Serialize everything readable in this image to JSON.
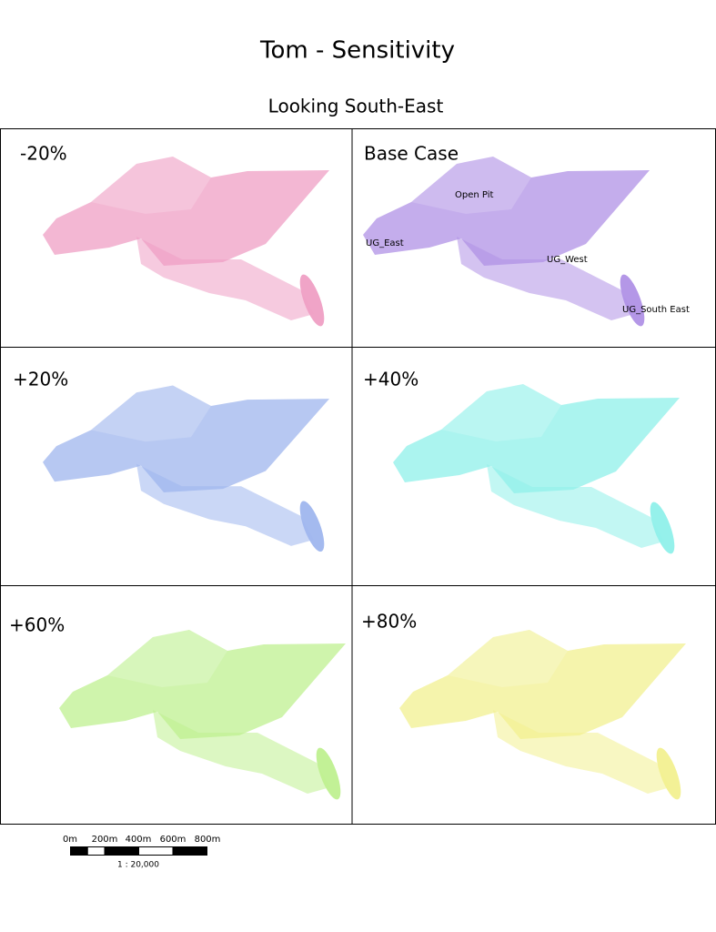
{
  "title": "Tom - Sensitivity",
  "subtitle": "Looking South-East",
  "panels": [
    {
      "label": "-20%"
    },
    {
      "label": "Base Case"
    },
    {
      "label": "+20%"
    },
    {
      "label": "+40%"
    },
    {
      "label": "+60%"
    },
    {
      "label": "+80%"
    }
  ],
  "annotations": [
    "Open Pit",
    "UG_East",
    "UG_West",
    "UG_South East"
  ],
  "scale_bar": {
    "ticks": [
      "0m",
      "200m",
      "400m",
      "600m",
      "800m"
    ],
    "ratio": "1 : 20,000"
  }
}
